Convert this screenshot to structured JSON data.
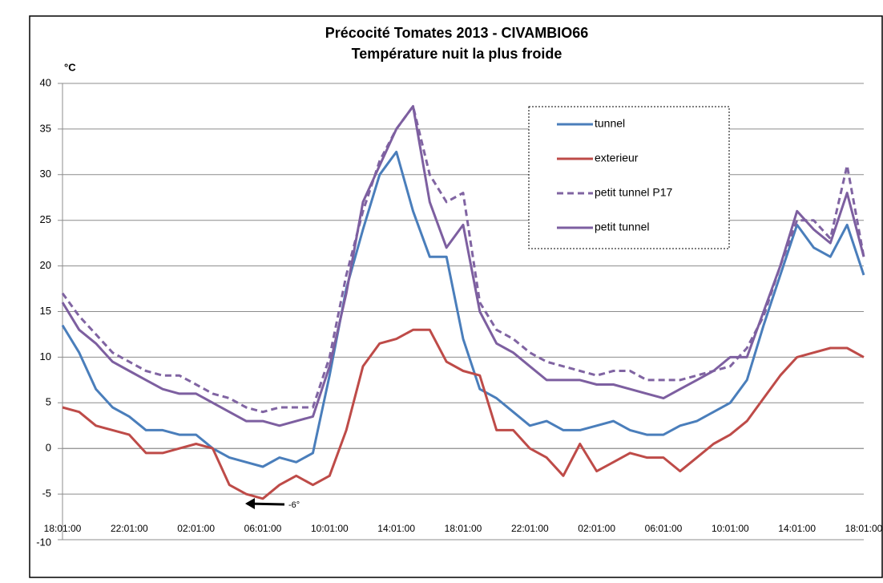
{
  "chart_data": {
    "type": "line",
    "title": "Précocité Tomates 2013 -  CIVAMBIO66",
    "subtitle": "Température nuit la plus froide",
    "y_label": "°C",
    "annotation": "-6°",
    "categories": [
      "18:01:00",
      null,
      null,
      null,
      "22:01:00",
      null,
      null,
      null,
      "02:01:00",
      null,
      null,
      null,
      "06:01:00",
      null,
      null,
      null,
      "10:01:00",
      null,
      null,
      null,
      "14:01:00",
      null,
      null,
      null,
      "18:01:00",
      null,
      null,
      null,
      "22:01:00",
      null,
      null,
      null,
      "02:01:00",
      null,
      null,
      null,
      "06:01:00",
      null,
      null,
      null,
      "10:01:00",
      null,
      null,
      null,
      "14:01:00",
      null,
      null,
      null,
      "18:01:00"
    ],
    "ylim": [
      -10,
      40
    ],
    "yticks": [
      -10,
      -5,
      0,
      5,
      10,
      15,
      20,
      25,
      30,
      35,
      40
    ],
    "grid": true,
    "series": [
      {
        "name": "tunnel",
        "color": "#4a7ebb",
        "dashed": false,
        "values": [
          13.5,
          10.5,
          6.5,
          4.5,
          3.5,
          2,
          2,
          1.5,
          1.5,
          0,
          -1,
          -1.5,
          -2,
          -1,
          -1.5,
          -0.5,
          8,
          17.5,
          24,
          30,
          32.5,
          26,
          21,
          21,
          12,
          6.5,
          5.5,
          4,
          2.5,
          3,
          2,
          2,
          2.5,
          3,
          2,
          1.5,
          1.5,
          2.5,
          3,
          4,
          5,
          7.5,
          13.5,
          19,
          24.5,
          22,
          21,
          24.5,
          19
        ]
      },
      {
        "name": "exterieur",
        "color": "#be4b48",
        "dashed": false,
        "values": [
          4.5,
          4,
          2.5,
          2,
          1.5,
          -0.5,
          -0.5,
          0,
          0.5,
          0,
          -4,
          -5,
          -5.5,
          -4,
          -3,
          -4,
          -3,
          2,
          9,
          11.5,
          12,
          13,
          13,
          9.5,
          8.5,
          8,
          2,
          2,
          0,
          -1,
          -3,
          0.5,
          -2.5,
          -1.5,
          -0.5,
          -1,
          -1,
          -2.5,
          -1,
          0.5,
          1.5,
          3,
          5.5,
          8,
          10,
          10.5,
          11,
          11,
          10
        ]
      },
      {
        "name": "petit tunnel P17",
        "color": "#8064a2",
        "dashed": true,
        "values": [
          17,
          14.5,
          12.5,
          10.5,
          9.5,
          8.5,
          8,
          8,
          7,
          6,
          5.5,
          4.5,
          4,
          4.5,
          4.5,
          4.5,
          10,
          19,
          26,
          31.5,
          35,
          37.5,
          30,
          27,
          28,
          16,
          13,
          12,
          10.5,
          9.5,
          9,
          8.5,
          8,
          8.5,
          8.5,
          7.5,
          7.5,
          7.5,
          8,
          8.5,
          9,
          11,
          14.5,
          20,
          25,
          25,
          23,
          31,
          21
        ]
      },
      {
        "name": "petit tunnel",
        "color": "#7d5fa0",
        "dashed": false,
        "values": [
          16,
          13,
          11.5,
          9.5,
          8.5,
          7.5,
          6.5,
          6,
          6,
          5,
          4,
          3,
          3,
          2.5,
          3,
          3.5,
          9,
          17,
          27,
          31,
          35,
          37.5,
          27,
          22,
          24.5,
          15,
          11.5,
          10.5,
          9,
          7.5,
          7.5,
          7.5,
          7,
          7,
          6.5,
          6,
          5.5,
          6.5,
          7.5,
          8.5,
          10,
          10,
          15,
          20,
          26,
          24,
          22.5,
          28,
          21
        ]
      }
    ]
  }
}
